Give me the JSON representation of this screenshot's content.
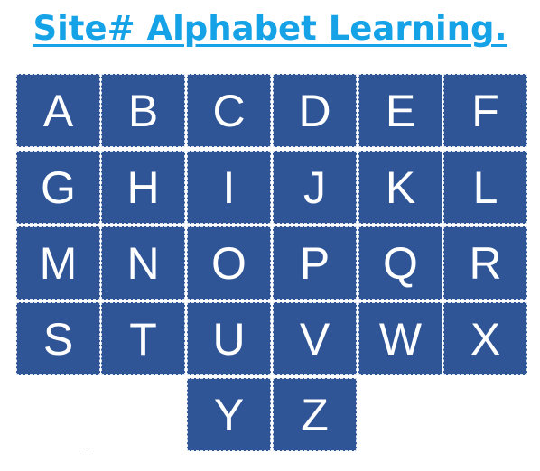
{
  "title": "Site# Alphabet Learning.",
  "colors": {
    "title": "#16a2e6",
    "tile_background": "#2f5597",
    "tile_text": "#ffffff"
  },
  "letters": {
    "A": "A",
    "B": "B",
    "C": "C",
    "D": "D",
    "E": "E",
    "F": "F",
    "G": "G",
    "H": "H",
    "I": "I",
    "J": "J",
    "K": "K",
    "L": "L",
    "M": "M",
    "N": "N",
    "O": "O",
    "P": "P",
    "Q": "Q",
    "R": "R",
    "S": "S",
    "T": "T",
    "U": "U",
    "V": "V",
    "W": "W",
    "X": "X",
    "Y": "Y",
    "Z": "Z"
  }
}
